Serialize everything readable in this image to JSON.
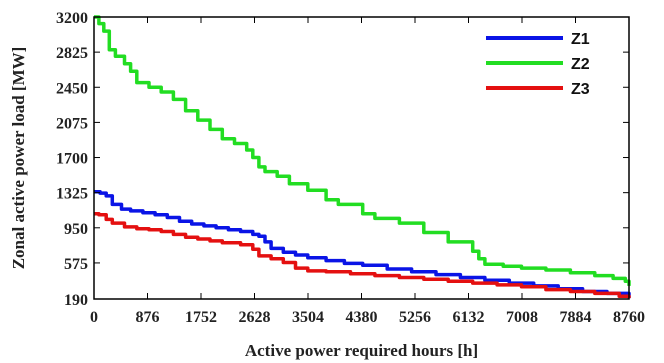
{
  "chart_data": {
    "type": "line",
    "title": "",
    "xlabel": "Active power required hours [h]",
    "ylabel": "Zonal active power load [MW]",
    "xlim": [
      0,
      8760
    ],
    "ylim": [
      190,
      3200
    ],
    "xticks": [
      0,
      876,
      1752,
      2628,
      3504,
      4380,
      5256,
      6132,
      7008,
      7884,
      8760
    ],
    "yticks": [
      190,
      575,
      950,
      1325,
      1700,
      2075,
      2450,
      2825,
      3200
    ],
    "grid": false,
    "legend_position": "top-right",
    "series": [
      {
        "name": "Z1",
        "color": "#0a14e6",
        "x": [
          0,
          100,
          200,
          300,
          450,
          600,
          800,
          1000,
          1200,
          1400,
          1600,
          1800,
          2000,
          2200,
          2400,
          2600,
          2700,
          2800,
          2900,
          3100,
          3300,
          3500,
          3800,
          4100,
          4400,
          4800,
          5200,
          5600,
          6000,
          6400,
          6800,
          7200,
          7600,
          8000,
          8400,
          8760
        ],
        "y": [
          1335,
          1320,
          1290,
          1200,
          1150,
          1130,
          1110,
          1090,
          1060,
          1020,
          990,
          970,
          950,
          930,
          910,
          880,
          860,
          800,
          730,
          690,
          660,
          630,
          600,
          570,
          550,
          510,
          480,
          450,
          420,
          390,
          360,
          330,
          300,
          270,
          250,
          200
        ]
      },
      {
        "name": "Z2",
        "color": "#22dd22",
        "x": [
          0,
          80,
          160,
          250,
          350,
          500,
          600,
          700,
          900,
          1100,
          1300,
          1500,
          1700,
          1900,
          2100,
          2300,
          2500,
          2600,
          2700,
          2800,
          3000,
          3200,
          3500,
          3800,
          4000,
          4400,
          4600,
          5000,
          5400,
          5800,
          6200,
          6300,
          6400,
          6700,
          7000,
          7400,
          7800,
          8200,
          8500,
          8700,
          8760
        ],
        "y": [
          3200,
          3130,
          3050,
          2850,
          2780,
          2700,
          2620,
          2500,
          2450,
          2400,
          2320,
          2200,
          2100,
          2000,
          1900,
          1850,
          1780,
          1700,
          1600,
          1550,
          1500,
          1420,
          1350,
          1250,
          1200,
          1100,
          1050,
          1000,
          900,
          800,
          700,
          620,
          560,
          540,
          520,
          500,
          470,
          440,
          410,
          380,
          330
        ]
      },
      {
        "name": "Z3",
        "color": "#e41010",
        "x": [
          0,
          80,
          200,
          300,
          500,
          700,
          900,
          1100,
          1300,
          1500,
          1700,
          1900,
          2100,
          2400,
          2600,
          2700,
          2900,
          3100,
          3300,
          3500,
          3800,
          4200,
          4600,
          5000,
          5400,
          5800,
          6200,
          6600,
          7000,
          7400,
          7800,
          8200,
          8600,
          8760
        ],
        "y": [
          1100,
          1090,
          1040,
          1000,
          960,
          940,
          930,
          910,
          880,
          850,
          830,
          810,
          790,
          770,
          720,
          650,
          620,
          580,
          520,
          490,
          480,
          460,
          440,
          420,
          400,
          380,
          360,
          340,
          320,
          290,
          270,
          250,
          220,
          200
        ]
      }
    ]
  }
}
